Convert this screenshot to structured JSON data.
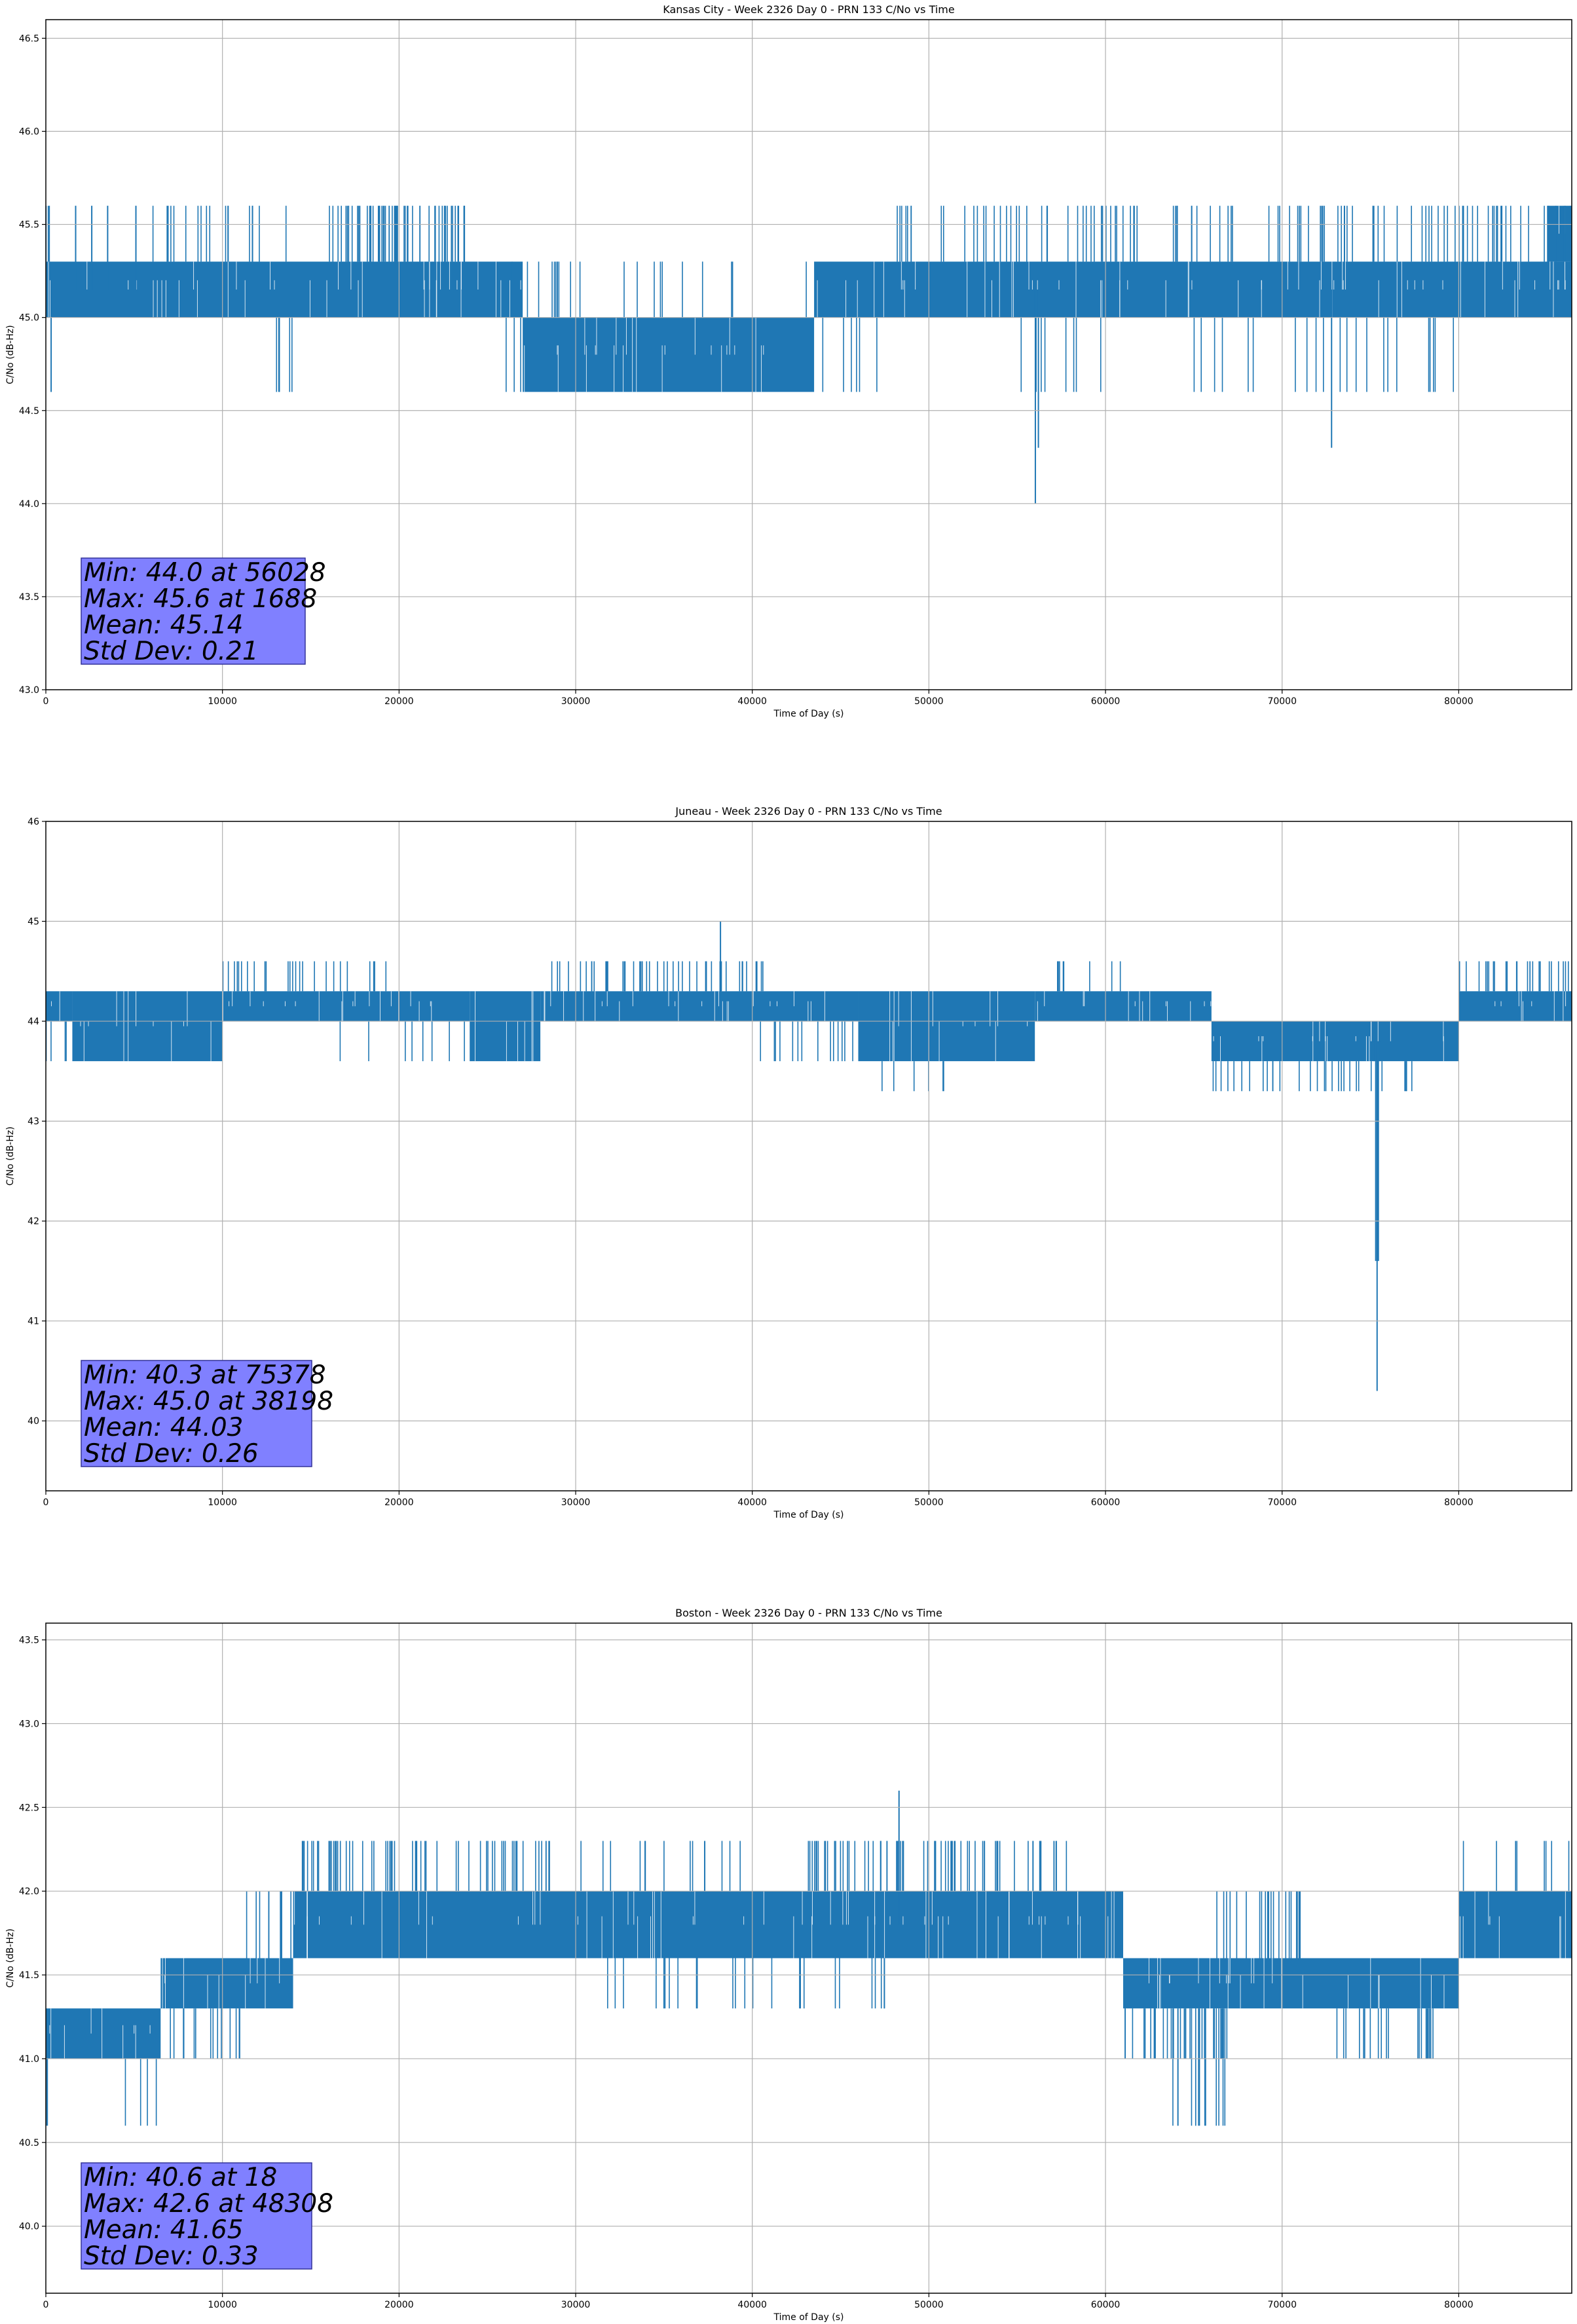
{
  "chart_data": [
    {
      "type": "line",
      "title": "Kansas City - Week 2326 Day 0 - PRN 133 C/No vs Time",
      "xlabel": "Time of Day (s)",
      "ylabel": "C/No (dB-Hz)",
      "xlim": [
        0,
        86400
      ],
      "ylim": [
        43.0,
        46.6
      ],
      "xticks": [
        0,
        10000,
        20000,
        30000,
        40000,
        50000,
        60000,
        70000,
        80000
      ],
      "yticks": [
        43.0,
        43.5,
        44.0,
        44.5,
        45.0,
        45.5,
        46.0,
        46.5
      ],
      "ytick_decimals": 1,
      "grid": true,
      "line_color": "#1f77b4",
      "stats_box_color": "#8080ff",
      "stats": [
        "Min: 44.0 at 56028",
        "Max: 45.6 at 1688",
        "Mean: 45.14",
        "Std Dev: 0.21"
      ],
      "bands": [
        {
          "x": [
            0,
            27000
          ],
          "y": [
            45.0,
            45.3
          ]
        },
        {
          "x": [
            27000,
            43500
          ],
          "y": [
            44.6,
            45.0
          ]
        },
        {
          "x": [
            43500,
            86400
          ],
          "y": [
            45.0,
            45.3
          ]
        },
        {
          "x": [
            85000,
            86400
          ],
          "y": [
            45.3,
            45.6
          ]
        }
      ],
      "levels": [
        44.6,
        45.0,
        45.3,
        45.6
      ],
      "density_ranges": [
        {
          "x": [
            0,
            1000
          ],
          "level": 45.6,
          "n": 3
        },
        {
          "x": [
            6000,
            10000
          ],
          "level": 45.6,
          "n": 10
        },
        {
          "x": [
            10000,
            14000
          ],
          "level": 45.6,
          "n": 8
        },
        {
          "x": [
            13000,
            14000
          ],
          "level": 44.6,
          "n": 5
        },
        {
          "x": [
            16000,
            24000
          ],
          "level": 45.6,
          "n": 60
        },
        {
          "x": [
            26000,
            30000
          ],
          "level": 45.3,
          "n": 10
        },
        {
          "x": [
            26000,
            28000
          ],
          "level": 44.6,
          "n": 6
        },
        {
          "x": [
            30000,
            36000
          ],
          "level": 45.3,
          "n": 6
        },
        {
          "x": [
            36000,
            43500
          ],
          "level": 45.3,
          "n": 5
        },
        {
          "x": [
            43500,
            48000
          ],
          "level": 44.6,
          "n": 6
        },
        {
          "x": [
            48000,
            86400
          ],
          "level": 45.6,
          "n": 110
        },
        {
          "x": [
            54000,
            60000
          ],
          "level": 44.6,
          "n": 8
        },
        {
          "x": [
            64000,
            80000
          ],
          "level": 44.6,
          "n": 22
        }
      ],
      "points": [
        [
          0,
          45.0
        ],
        [
          300,
          44.6
        ],
        [
          500,
          45.0
        ],
        [
          1688,
          45.6
        ],
        [
          2600,
          45.6
        ],
        [
          3500,
          45.6
        ],
        [
          5100,
          45.6
        ],
        [
          56028,
          44.0
        ],
        [
          56200,
          44.3
        ],
        [
          72800,
          44.3
        ],
        [
          86400,
          45.0
        ]
      ]
    },
    {
      "type": "line",
      "title": "Juneau - Week 2326 Day 0 - PRN 133 C/No vs Time",
      "xlabel": "Time of Day (s)",
      "ylabel": "C/No (dB-Hz)",
      "xlim": [
        0,
        86400
      ],
      "ylim": [
        39.3,
        46.0
      ],
      "xticks": [
        0,
        10000,
        20000,
        30000,
        40000,
        50000,
        60000,
        70000,
        80000
      ],
      "yticks": [
        40,
        41,
        42,
        43,
        44,
        45,
        46
      ],
      "ytick_decimals": 0,
      "grid": true,
      "line_color": "#1f77b4",
      "stats_box_color": "#8080ff",
      "stats": [
        "Min: 40.3 at 75378",
        "Max: 45.0 at 38198",
        "Mean: 44.03",
        "Std Dev: 0.26"
      ],
      "bands": [
        {
          "x": [
            0,
            1500
          ],
          "y": [
            44.0,
            44.3
          ]
        },
        {
          "x": [
            1500,
            10000
          ],
          "y": [
            43.6,
            44.3
          ]
        },
        {
          "x": [
            10000,
            24000
          ],
          "y": [
            44.0,
            44.3
          ]
        },
        {
          "x": [
            24000,
            28000
          ],
          "y": [
            43.6,
            44.3
          ]
        },
        {
          "x": [
            28000,
            46000
          ],
          "y": [
            44.0,
            44.3
          ]
        },
        {
          "x": [
            46000,
            56000
          ],
          "y": [
            43.6,
            44.3
          ]
        },
        {
          "x": [
            56000,
            66000
          ],
          "y": [
            44.0,
            44.3
          ]
        },
        {
          "x": [
            66000,
            80000
          ],
          "y": [
            43.6,
            44.0
          ]
        },
        {
          "x": [
            80000,
            86400
          ],
          "y": [
            44.0,
            44.3
          ]
        }
      ],
      "levels": [
        43.3,
        43.6,
        44.0,
        44.3,
        44.6
      ],
      "density_ranges": [
        {
          "x": [
            0,
            10000
          ],
          "level": 43.6,
          "n": 25
        },
        {
          "x": [
            10000,
            20000
          ],
          "level": 44.6,
          "n": 25
        },
        {
          "x": [
            16000,
            24000
          ],
          "level": 43.6,
          "n": 8
        },
        {
          "x": [
            28000,
            41000
          ],
          "level": 44.6,
          "n": 45
        },
        {
          "x": [
            40000,
            56000
          ],
          "level": 43.6,
          "n": 35
        },
        {
          "x": [
            47000,
            51000
          ],
          "level": 43.3,
          "n": 6
        },
        {
          "x": [
            57000,
            62000
          ],
          "level": 44.6,
          "n": 8
        },
        {
          "x": [
            66000,
            78000
          ],
          "level": 43.3,
          "n": 30
        },
        {
          "x": [
            80000,
            86400
          ],
          "level": 44.6,
          "n": 25
        }
      ],
      "points": [
        [
          0,
          44.0
        ],
        [
          38198,
          45.0
        ],
        [
          75200,
          43.6
        ],
        [
          75300,
          41.6
        ],
        [
          75378,
          40.3
        ],
        [
          75450,
          41.6
        ],
        [
          75550,
          43.6
        ],
        [
          86400,
          44.0
        ]
      ]
    },
    {
      "type": "line",
      "title": "Boston - Week 2326 Day 0 - PRN 133 C/No vs Time",
      "xlabel": "Time of Day (s)",
      "ylabel": "C/No (dB-Hz)",
      "xlim": [
        0,
        86400
      ],
      "ylim": [
        39.6,
        43.6
      ],
      "xticks": [
        0,
        10000,
        20000,
        30000,
        40000,
        50000,
        60000,
        70000,
        80000
      ],
      "yticks": [
        40.0,
        40.5,
        41.0,
        41.5,
        42.0,
        42.5,
        43.0,
        43.5
      ],
      "ytick_decimals": 1,
      "grid": true,
      "line_color": "#1f77b4",
      "stats_box_color": "#8080ff",
      "stats": [
        "Min: 40.6 at 18",
        "Max: 42.6 at 48308",
        "Mean: 41.65",
        "Std Dev: 0.33"
      ],
      "bands": [
        {
          "x": [
            0,
            6500
          ],
          "y": [
            41.0,
            41.3
          ]
        },
        {
          "x": [
            6500,
            14000
          ],
          "y": [
            41.3,
            41.6
          ]
        },
        {
          "x": [
            14000,
            61000
          ],
          "y": [
            41.6,
            42.0
          ]
        },
        {
          "x": [
            61000,
            80000
          ],
          "y": [
            41.3,
            41.6
          ]
        },
        {
          "x": [
            80000,
            86400
          ],
          "y": [
            41.6,
            42.0
          ]
        }
      ],
      "levels": [
        40.6,
        41.0,
        41.3,
        41.6,
        42.0,
        42.3
      ],
      "density_ranges": [
        {
          "x": [
            0,
            7000
          ],
          "level": 40.6,
          "n": 5
        },
        {
          "x": [
            6500,
            11000
          ],
          "level": 41.0,
          "n": 14
        },
        {
          "x": [
            11000,
            14500
          ],
          "level": 42.0,
          "n": 10
        },
        {
          "x": [
            14500,
            29000
          ],
          "level": 42.3,
          "n": 60
        },
        {
          "x": [
            30000,
            40000
          ],
          "level": 42.3,
          "n": 14
        },
        {
          "x": [
            30000,
            48000
          ],
          "level": 41.3,
          "n": 25
        },
        {
          "x": [
            43000,
            58000
          ],
          "level": 42.3,
          "n": 70
        },
        {
          "x": [
            61000,
            67000
          ],
          "level": 41.0,
          "n": 30
        },
        {
          "x": [
            63000,
            67000
          ],
          "level": 40.6,
          "n": 14
        },
        {
          "x": [
            66000,
            72000
          ],
          "level": 42.0,
          "n": 22
        },
        {
          "x": [
            73000,
            79000
          ],
          "level": 41.0,
          "n": 20
        },
        {
          "x": [
            80000,
            86400
          ],
          "level": 42.3,
          "n": 8
        }
      ],
      "points": [
        [
          0,
          41.0
        ],
        [
          18,
          40.6
        ],
        [
          48308,
          42.6
        ],
        [
          86400,
          41.6
        ]
      ]
    }
  ]
}
